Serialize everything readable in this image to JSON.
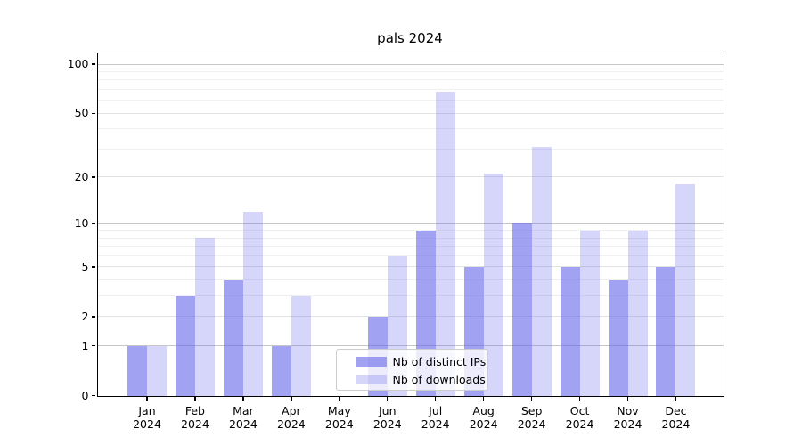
{
  "chart_data": {
    "type": "bar",
    "title": "pals 2024",
    "categories": [
      "Jan",
      "Feb",
      "Mar",
      "Apr",
      "May",
      "Jun",
      "Jul",
      "Aug",
      "Sep",
      "Oct",
      "Nov",
      "Dec"
    ],
    "year_label": "2024",
    "series": [
      {
        "name": "Nb of distinct IPs",
        "values": [
          1,
          3,
          4,
          1,
          0,
          2,
          9,
          5,
          10,
          5,
          4,
          5
        ],
        "color": "rgba(105,105,235,0.62)"
      },
      {
        "name": "Nb of downloads",
        "values": [
          1,
          8,
          12,
          3,
          0,
          6,
          68,
          21,
          31,
          9,
          9,
          18
        ],
        "color": "rgba(105,105,235,0.27)"
      }
    ],
    "yscale": "log1p",
    "yticks": [
      0,
      1,
      2,
      5,
      10,
      20,
      50,
      100
    ],
    "yticks_decade": [
      1,
      10,
      100
    ],
    "yticks_minor": [
      3,
      4,
      6,
      7,
      8,
      9,
      30,
      40,
      60,
      70,
      80,
      90
    ],
    "ylim": [
      0,
      116
    ],
    "grid": "on",
    "legend_position": "lower center-left",
    "colors": {
      "spine": "#000000",
      "grid_major": "#c6c6c6",
      "grid_minor": "#efefef",
      "background": "#ffffff"
    }
  }
}
